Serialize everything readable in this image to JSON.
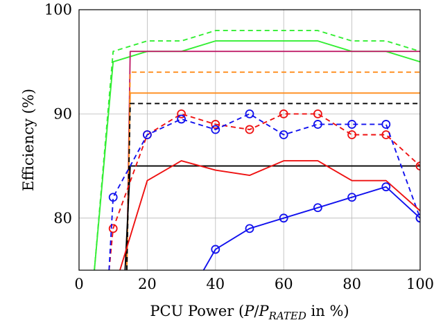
{
  "chart_data": {
    "type": "line",
    "title": "",
    "xlabel": {
      "prefix": "PCU Power (",
      "p": "P",
      "slash": "/",
      "p2": "P",
      "sub": "RATED",
      "suffix": " in %)"
    },
    "ylabel": "Efficiency (%)",
    "xlim": [
      0,
      100
    ],
    "ylim": [
      75,
      100
    ],
    "xticks": [
      0,
      20,
      40,
      60,
      80,
      100
    ],
    "yticks": [
      80,
      90,
      100
    ],
    "grid": true,
    "series": [
      {
        "color": "#33ee33",
        "dash": true,
        "markers": false,
        "x": [
          4.5,
          10,
          20,
          30,
          40,
          50,
          60,
          70,
          80,
          90,
          100
        ],
        "y": [
          75,
          96,
          97,
          97,
          98,
          98,
          98,
          98,
          97,
          97,
          96
        ]
      },
      {
        "color": "#33ee33",
        "dash": false,
        "markers": false,
        "x": [
          4.5,
          10,
          20,
          30,
          40,
          50,
          60,
          70,
          80,
          90,
          100
        ],
        "y": [
          75,
          95,
          96,
          96,
          97,
          97,
          97,
          97,
          96,
          96,
          95
        ]
      },
      {
        "color": "#c0206a",
        "dash": false,
        "markers": false,
        "x": [
          14,
          15,
          100
        ],
        "y": [
          75,
          96,
          96
        ]
      },
      {
        "color": "#ff8c1a",
        "dash": true,
        "markers": false,
        "x": [
          14,
          15,
          100
        ],
        "y": [
          75,
          94,
          94
        ]
      },
      {
        "color": "#ff8c1a",
        "dash": false,
        "markers": false,
        "x": [
          14,
          15,
          100
        ],
        "y": [
          75,
          92,
          92
        ]
      },
      {
        "color": "#000000",
        "dash": true,
        "markers": false,
        "x": [
          14,
          15,
          100
        ],
        "y": [
          75,
          91,
          91
        ]
      },
      {
        "color": "#000000",
        "dash": false,
        "markers": false,
        "x": [
          13.5,
          15,
          100
        ],
        "y": [
          75,
          85,
          85
        ]
      },
      {
        "color": "#ee1111",
        "dash": true,
        "markers": true,
        "x": [
          8.8,
          10,
          20,
          30,
          40,
          50,
          60,
          70,
          80,
          90,
          100
        ],
        "y": [
          75,
          79,
          88,
          90,
          89,
          88.5,
          90,
          90,
          88,
          88,
          85
        ]
      },
      {
        "color": "#1111ee",
        "dash": true,
        "markers": true,
        "x": [
          8.8,
          10,
          20,
          30,
          40,
          50,
          60,
          70,
          80,
          90,
          100
        ],
        "y": [
          75,
          82,
          88,
          89.5,
          88.5,
          90,
          88,
          89,
          89,
          89,
          80
        ]
      },
      {
        "color": "#ee1111",
        "dash": false,
        "markers": false,
        "x": [
          12,
          20,
          30,
          40,
          50,
          60,
          70,
          80,
          90,
          100
        ],
        "y": [
          75,
          83.6,
          85.5,
          84.6,
          84.1,
          85.5,
          85.5,
          83.6,
          83.6,
          80.7
        ]
      },
      {
        "color": "#1111ee",
        "dash": false,
        "markers": true,
        "x": [
          36.5,
          40,
          50,
          60,
          70,
          80,
          90,
          100
        ],
        "y": [
          75,
          77,
          79,
          80,
          81,
          82,
          83,
          80
        ]
      }
    ]
  }
}
